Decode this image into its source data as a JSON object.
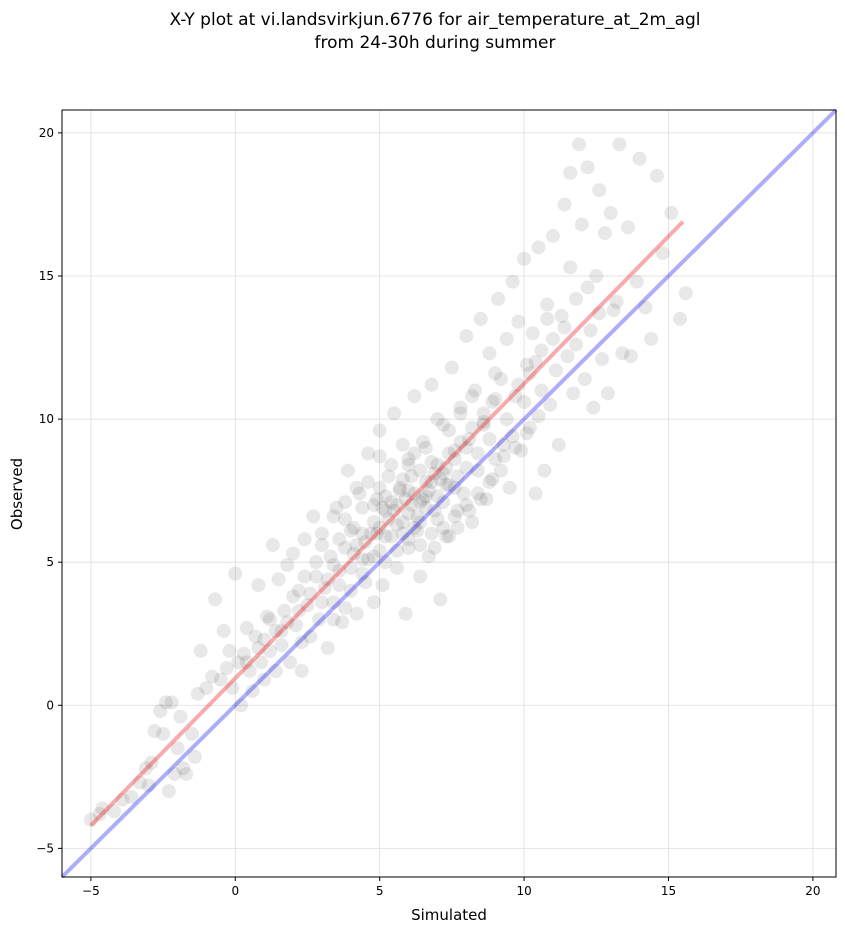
{
  "chart_data": {
    "type": "scatter",
    "title_lines": [
      "X-Y plot at vi.landsvirkjun.6776 for air_temperature_at_2m_agl",
      "from 24-30h during summer"
    ],
    "xlabel": "Simulated",
    "ylabel": "Observed",
    "xlim": [
      -6.0,
      20.8
    ],
    "ylim": [
      -6.0,
      20.8
    ],
    "xticks": [
      -5,
      0,
      5,
      10,
      15,
      20
    ],
    "yticks": [
      -5,
      0,
      5,
      10,
      15,
      20
    ],
    "grid": true,
    "marker_color": "#000000",
    "marker_alpha": 0.09,
    "identity_line": {
      "x": [
        -6.0,
        20.8
      ],
      "y": [
        -6.0,
        20.8
      ],
      "color": "#0000ee"
    },
    "regression_line": {
      "x": [
        -5.0,
        15.5
      ],
      "y": [
        -4.2,
        16.9
      ],
      "color": "#ee2222"
    },
    "points": [
      [
        -5.0,
        -4.0
      ],
      [
        -4.7,
        -3.8
      ],
      [
        -4.6,
        -3.6
      ],
      [
        -4.2,
        -3.7
      ],
      [
        -3.9,
        -3.3
      ],
      [
        -3.6,
        -3.2
      ],
      [
        -3.3,
        -2.7
      ],
      [
        -3.1,
        -2.2
      ],
      [
        -3.0,
        -2.8
      ],
      [
        -2.9,
        -2.0
      ],
      [
        -2.8,
        -0.9
      ],
      [
        -2.6,
        -0.2
      ],
      [
        -2.5,
        -1.0
      ],
      [
        -2.4,
        0.1
      ],
      [
        -2.3,
        -3.0
      ],
      [
        -2.2,
        0.1
      ],
      [
        -2.1,
        -2.4
      ],
      [
        -2.0,
        -1.5
      ],
      [
        -1.9,
        -0.4
      ],
      [
        -1.8,
        -2.2
      ],
      [
        -1.7,
        -2.4
      ],
      [
        -1.5,
        -1.0
      ],
      [
        -1.4,
        -1.8
      ],
      [
        -1.3,
        0.4
      ],
      [
        -1.2,
        1.9
      ],
      [
        -1.0,
        0.6
      ],
      [
        -0.8,
        1.0
      ],
      [
        -0.7,
        3.7
      ],
      [
        -0.5,
        0.9
      ],
      [
        -0.4,
        2.6
      ],
      [
        -0.3,
        1.3
      ],
      [
        -0.2,
        1.9
      ],
      [
        -0.1,
        0.6
      ],
      [
        0.0,
        4.6
      ],
      [
        0.1,
        1.5
      ],
      [
        0.2,
        0.0
      ],
      [
        0.3,
        1.8
      ],
      [
        0.4,
        2.7
      ],
      [
        0.5,
        1.2
      ],
      [
        0.6,
        0.5
      ],
      [
        0.7,
        2.4
      ],
      [
        0.8,
        4.2
      ],
      [
        0.9,
        1.5
      ],
      [
        1.0,
        0.9
      ],
      [
        1.1,
        3.1
      ],
      [
        1.2,
        1.9
      ],
      [
        1.3,
        5.6
      ],
      [
        1.4,
        2.6
      ],
      [
        1.5,
        4.4
      ],
      [
        1.6,
        2.1
      ],
      [
        1.7,
        3.3
      ],
      [
        1.8,
        4.9
      ],
      [
        1.9,
        1.5
      ],
      [
        2.0,
        5.3
      ],
      [
        2.1,
        2.8
      ],
      [
        2.2,
        4.0
      ],
      [
        2.3,
        1.2
      ],
      [
        2.4,
        5.8
      ],
      [
        2.5,
        3.5
      ],
      [
        2.6,
        2.4
      ],
      [
        2.7,
        6.6
      ],
      [
        2.8,
        4.5
      ],
      [
        2.9,
        3.0
      ],
      [
        3.0,
        6.0
      ],
      [
        3.1,
        4.1
      ],
      [
        3.2,
        2.0
      ],
      [
        3.3,
        5.2
      ],
      [
        3.4,
        3.6
      ],
      [
        3.5,
        6.9
      ],
      [
        3.6,
        4.7
      ],
      [
        3.7,
        2.9
      ],
      [
        3.8,
        5.5
      ],
      [
        3.9,
        8.2
      ],
      [
        4.0,
        4.0
      ],
      [
        4.1,
        6.2
      ],
      [
        4.2,
        3.2
      ],
      [
        4.3,
        7.4
      ],
      [
        4.4,
        5.1
      ],
      [
        4.5,
        4.3
      ],
      [
        4.6,
        8.8
      ],
      [
        4.7,
        6.0
      ],
      [
        4.8,
        3.6
      ],
      [
        4.9,
        7.2
      ],
      [
        5.0,
        5.4
      ],
      [
        5.0,
        9.6
      ],
      [
        5.1,
        4.2
      ],
      [
        5.2,
        6.8
      ],
      [
        5.3,
        8.0
      ],
      [
        5.4,
        5.9
      ],
      [
        5.5,
        10.2
      ],
      [
        5.6,
        4.8
      ],
      [
        5.7,
        7.5
      ],
      [
        5.8,
        6.4
      ],
      [
        5.9,
        3.2
      ],
      [
        6.0,
        8.6
      ],
      [
        6.0,
        5.5
      ],
      [
        6.1,
        7.0
      ],
      [
        6.2,
        10.8
      ],
      [
        6.3,
        6.1
      ],
      [
        6.4,
        4.5
      ],
      [
        6.5,
        9.2
      ],
      [
        6.6,
        7.3
      ],
      [
        6.7,
        5.2
      ],
      [
        6.8,
        11.2
      ],
      [
        6.9,
        8.1
      ],
      [
        7.0,
        6.5
      ],
      [
        7.1,
        3.7
      ],
      [
        7.2,
        9.8
      ],
      [
        7.3,
        7.7
      ],
      [
        7.4,
        5.9
      ],
      [
        7.5,
        11.8
      ],
      [
        7.6,
        8.9
      ],
      [
        7.7,
        6.8
      ],
      [
        7.8,
        10.4
      ],
      [
        7.9,
        7.4
      ],
      [
        8.0,
        12.9
      ],
      [
        8.1,
        9.3
      ],
      [
        8.2,
        6.4
      ],
      [
        8.3,
        11.0
      ],
      [
        8.4,
        8.2
      ],
      [
        8.5,
        13.5
      ],
      [
        8.6,
        9.9
      ],
      [
        8.7,
        7.2
      ],
      [
        8.8,
        12.3
      ],
      [
        8.9,
        10.6
      ],
      [
        9.0,
        8.6
      ],
      [
        9.1,
        14.2
      ],
      [
        9.2,
        11.4
      ],
      [
        9.3,
        9.1
      ],
      [
        9.4,
        12.8
      ],
      [
        9.5,
        7.6
      ],
      [
        9.6,
        14.8
      ],
      [
        9.7,
        10.8
      ],
      [
        9.8,
        13.4
      ],
      [
        9.9,
        8.9
      ],
      [
        10.0,
        15.6
      ],
      [
        10.1,
        11.9
      ],
      [
        10.2,
        9.7
      ],
      [
        10.3,
        13.0
      ],
      [
        10.4,
        7.4
      ],
      [
        10.5,
        16.0
      ],
      [
        10.6,
        12.4
      ],
      [
        10.7,
        8.2
      ],
      [
        10.8,
        14.0
      ],
      [
        10.9,
        10.5
      ],
      [
        11.0,
        16.4
      ],
      [
        11.1,
        11.7
      ],
      [
        11.2,
        9.1
      ],
      [
        11.3,
        13.6
      ],
      [
        11.4,
        17.5
      ],
      [
        11.5,
        12.2
      ],
      [
        11.6,
        18.6
      ],
      [
        11.7,
        10.9
      ],
      [
        11.8,
        14.2
      ],
      [
        11.9,
        19.6
      ],
      [
        12.0,
        16.8
      ],
      [
        12.1,
        11.4
      ],
      [
        12.2,
        18.8
      ],
      [
        12.3,
        13.1
      ],
      [
        12.4,
        10.4
      ],
      [
        12.5,
        15.0
      ],
      [
        12.6,
        18.0
      ],
      [
        12.7,
        12.1
      ],
      [
        12.8,
        16.5
      ],
      [
        12.9,
        10.9
      ],
      [
        13.0,
        17.2
      ],
      [
        13.1,
        13.8
      ],
      [
        13.3,
        19.6
      ],
      [
        13.4,
        12.3
      ],
      [
        13.6,
        16.7
      ],
      [
        13.7,
        12.2
      ],
      [
        13.9,
        14.8
      ],
      [
        14.0,
        19.1
      ],
      [
        14.2,
        13.9
      ],
      [
        14.4,
        12.8
      ],
      [
        14.6,
        18.5
      ],
      [
        14.8,
        15.8
      ],
      [
        15.1,
        17.2
      ],
      [
        15.4,
        13.5
      ],
      [
        15.6,
        14.4
      ],
      [
        3.0,
        5.6
      ],
      [
        3.4,
        4.9
      ],
      [
        3.8,
        6.5
      ],
      [
        4.2,
        5.6
      ],
      [
        4.4,
        6.9
      ],
      [
        4.6,
        5.1
      ],
      [
        4.8,
        6.4
      ],
      [
        5.0,
        7.6
      ],
      [
        5.2,
        5.9
      ],
      [
        5.4,
        7.1
      ],
      [
        5.6,
        6.3
      ],
      [
        5.8,
        7.9
      ],
      [
        6.0,
        6.7
      ],
      [
        6.2,
        7.4
      ],
      [
        6.4,
        8.2
      ],
      [
        6.6,
        6.9
      ],
      [
        6.8,
        7.8
      ],
      [
        7.0,
        8.4
      ],
      [
        7.2,
        7.1
      ],
      [
        7.4,
        8.8
      ],
      [
        7.6,
        7.6
      ],
      [
        7.8,
        9.2
      ],
      [
        8.0,
        8.3
      ],
      [
        8.2,
        9.7
      ],
      [
        8.4,
        8.8
      ],
      [
        8.6,
        10.2
      ],
      [
        8.8,
        9.3
      ],
      [
        9.0,
        10.7
      ],
      [
        3.6,
        5.8
      ],
      [
        4.0,
        6.1
      ],
      [
        4.4,
        6.0
      ],
      [
        4.8,
        7.0
      ],
      [
        5.2,
        7.3
      ],
      [
        5.6,
        7.0
      ],
      [
        6.0,
        7.5
      ],
      [
        6.4,
        7.1
      ],
      [
        6.8,
        8.5
      ],
      [
        7.2,
        8.1
      ],
      [
        7.6,
        8.6
      ],
      [
        8.0,
        9.0
      ],
      [
        5.5,
        6.8
      ],
      [
        5.9,
        7.2
      ],
      [
        6.3,
        6.6
      ],
      [
        6.7,
        7.5
      ],
      [
        7.1,
        7.9
      ],
      [
        5.3,
        6.5
      ],
      [
        5.7,
        7.6
      ],
      [
        6.1,
        8.0
      ],
      [
        6.5,
        7.2
      ],
      [
        6.9,
        6.8
      ],
      [
        7.3,
        8.3
      ],
      [
        7.7,
        8.0
      ],
      [
        4.1,
        5.3
      ],
      [
        4.5,
        5.7
      ],
      [
        4.9,
        6.0
      ],
      [
        5.1,
        6.9
      ],
      [
        6.2,
        6.2
      ],
      [
        6.6,
        7.8
      ],
      [
        7.0,
        7.3
      ],
      [
        7.4,
        7.7
      ],
      [
        5.8,
        6.0
      ],
      [
        6.0,
        8.4
      ],
      [
        6.4,
        6.4
      ],
      [
        5.0,
        6.2
      ],
      [
        3.2,
        4.4
      ],
      [
        3.6,
        4.2
      ],
      [
        4.0,
        4.8
      ],
      [
        4.4,
        4.6
      ],
      [
        4.8,
        5.2
      ],
      [
        5.2,
        5.0
      ],
      [
        5.6,
        5.4
      ],
      [
        6.0,
        5.8
      ],
      [
        6.4,
        5.6
      ],
      [
        6.8,
        6.0
      ],
      [
        7.2,
        6.2
      ],
      [
        7.6,
        6.6
      ],
      [
        8.0,
        7.0
      ],
      [
        8.4,
        7.4
      ],
      [
        8.8,
        7.8
      ],
      [
        9.2,
        8.2
      ],
      [
        2.2,
        3.3
      ],
      [
        2.6,
        3.9
      ],
      [
        3.0,
        3.6
      ],
      [
        2.4,
        4.5
      ],
      [
        2.8,
        5.0
      ],
      [
        1.6,
        2.6
      ],
      [
        1.2,
        3.0
      ],
      [
        0.8,
        2.0
      ],
      [
        1.4,
        1.2
      ],
      [
        2.0,
        3.8
      ],
      [
        0.4,
        1.5
      ],
      [
        1.0,
        2.3
      ],
      [
        1.8,
        2.9
      ],
      [
        2.3,
        2.2
      ],
      [
        3.4,
        3.0
      ],
      [
        3.8,
        3.4
      ],
      [
        9.4,
        10.0
      ],
      [
        9.8,
        11.2
      ],
      [
        10.2,
        11.6
      ],
      [
        10.6,
        11.0
      ],
      [
        9.6,
        9.4
      ],
      [
        10.0,
        10.6
      ],
      [
        10.4,
        12.0
      ],
      [
        8.6,
        9.8
      ],
      [
        9.0,
        11.6
      ],
      [
        8.2,
        10.8
      ],
      [
        7.8,
        10.2
      ],
      [
        7.4,
        9.6
      ],
      [
        7.0,
        10.0
      ],
      [
        6.6,
        9.0
      ],
      [
        6.2,
        8.8
      ],
      [
        5.8,
        9.1
      ],
      [
        5.4,
        8.4
      ],
      [
        5.0,
        8.7
      ],
      [
        4.6,
        7.8
      ],
      [
        4.2,
        7.6
      ],
      [
        3.8,
        7.1
      ],
      [
        3.4,
        6.6
      ],
      [
        6.9,
        5.5
      ],
      [
        7.3,
        5.9
      ],
      [
        7.7,
        6.2
      ],
      [
        8.1,
        6.8
      ],
      [
        8.5,
        7.2
      ],
      [
        8.9,
        7.9
      ],
      [
        9.3,
        8.7
      ],
      [
        9.7,
        9.0
      ],
      [
        10.1,
        9.5
      ],
      [
        10.5,
        10.1
      ],
      [
        11.0,
        12.8
      ],
      [
        11.4,
        13.2
      ],
      [
        11.8,
        12.6
      ],
      [
        12.2,
        14.6
      ],
      [
        11.6,
        15.3
      ],
      [
        10.8,
        13.5
      ],
      [
        12.6,
        13.7
      ],
      [
        13.2,
        14.1
      ]
    ]
  }
}
